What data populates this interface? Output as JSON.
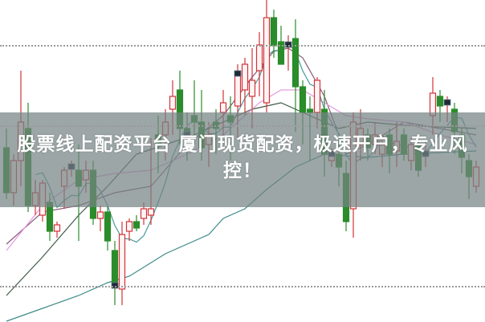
{
  "caption": "股票线上配资平台 厦门现货配资，极速开户，专业风控！",
  "colors": {
    "up": "#d0343a",
    "down": "#2a8c2a",
    "marker": "#1d2a38",
    "banner": "#768484"
  },
  "chart_data": {
    "type": "candlestick",
    "title": "",
    "xlabel": "",
    "ylabel": "",
    "ylim": [
      0,
      100
    ],
    "grid": "horizontal dotted",
    "candles": [
      {
        "o": 54,
        "h": 60,
        "l": 38,
        "c": 40
      },
      {
        "o": 40,
        "h": 52,
        "l": 36,
        "c": 50
      },
      {
        "o": 50,
        "h": 78,
        "l": 42,
        "c": 62
      },
      {
        "o": 60,
        "h": 68,
        "l": 34,
        "c": 36
      },
      {
        "o": 36,
        "h": 44,
        "l": 33,
        "c": 40
      },
      {
        "o": 33,
        "h": 44,
        "l": 31,
        "c": 43
      },
      {
        "o": 37,
        "h": 40,
        "l": 25,
        "c": 28
      },
      {
        "o": 28,
        "h": 31,
        "l": 26,
        "c": 30
      },
      {
        "o": 42,
        "h": 48,
        "l": 35,
        "c": 47
      },
      {
        "o": 48,
        "h": 50,
        "l": 45,
        "c": 48,
        "marker": true
      },
      {
        "o": 47,
        "h": 55,
        "l": 25,
        "c": 42
      },
      {
        "o": 44,
        "h": 50,
        "l": 40,
        "c": 47
      },
      {
        "o": 47,
        "h": 50,
        "l": 30,
        "c": 32
      },
      {
        "o": 32,
        "h": 36,
        "l": 28,
        "c": 34
      },
      {
        "o": 34,
        "h": 36,
        "l": 22,
        "c": 25
      },
      {
        "o": 22,
        "h": 25,
        "l": 5,
        "c": 11,
        "marker": true
      },
      {
        "o": 10,
        "h": 31,
        "l": 5,
        "c": 27
      },
      {
        "o": 28,
        "h": 32,
        "l": 25,
        "c": 31
      },
      {
        "o": 31,
        "h": 33,
        "l": 28,
        "c": 29
      },
      {
        "o": 32,
        "h": 37,
        "l": 30,
        "c": 35
      },
      {
        "o": 33,
        "h": 57,
        "l": 30,
        "c": 35
      },
      {
        "o": 58,
        "h": 64,
        "l": 46,
        "c": 55
      },
      {
        "o": 58,
        "h": 66,
        "l": 50,
        "c": 62
      },
      {
        "o": 66,
        "h": 75,
        "l": 58,
        "c": 70
      },
      {
        "o": 72,
        "h": 78,
        "l": 55,
        "c": 60
      },
      {
        "o": 60,
        "h": 65,
        "l": 50,
        "c": 58,
        "marker": true
      },
      {
        "o": 64,
        "h": 75,
        "l": 55,
        "c": 62
      },
      {
        "o": 62,
        "h": 72,
        "l": 50,
        "c": 54
      },
      {
        "o": 55,
        "h": 62,
        "l": 48,
        "c": 58
      },
      {
        "o": 62,
        "h": 66,
        "l": 52,
        "c": 60
      },
      {
        "o": 65,
        "h": 72,
        "l": 58,
        "c": 68
      },
      {
        "o": 64,
        "h": 70,
        "l": 50,
        "c": 62
      },
      {
        "o": 67,
        "h": 80,
        "l": 57,
        "c": 77,
        "marker": true
      },
      {
        "o": 72,
        "h": 82,
        "l": 64,
        "c": 80
      },
      {
        "o": 70,
        "h": 85,
        "l": 60,
        "c": 75
      },
      {
        "o": 78,
        "h": 90,
        "l": 70,
        "c": 86
      },
      {
        "o": 68,
        "h": 100,
        "l": 65,
        "c": 94.5
      },
      {
        "o": 94.5,
        "h": 97,
        "l": 82,
        "c": 85.8
      },
      {
        "o": 87,
        "h": 92,
        "l": 80,
        "c": 80
      },
      {
        "o": 86,
        "h": 89,
        "l": 78,
        "c": 86,
        "marker": true
      },
      {
        "o": 88,
        "h": 94,
        "l": 59,
        "c": 73
      },
      {
        "o": 73,
        "h": 75,
        "l": 55,
        "c": 65
      },
      {
        "o": 66,
        "h": 70,
        "l": 50,
        "c": 65
      },
      {
        "o": 65,
        "h": 76,
        "l": 60,
        "c": 75
      },
      {
        "o": 66,
        "h": 72,
        "l": 45,
        "c": 52
      },
      {
        "o": 50,
        "h": 54,
        "l": 48,
        "c": 52,
        "marker": true
      },
      {
        "o": 52,
        "h": 58,
        "l": 42,
        "c": 48
      },
      {
        "o": 46,
        "h": 50,
        "l": 28,
        "c": 31
      },
      {
        "o": 35,
        "h": 65,
        "l": 26,
        "c": 62
      },
      {
        "o": 55,
        "h": 66,
        "l": 50,
        "c": 60
      },
      {
        "o": 58,
        "h": 60,
        "l": 50,
        "c": 54
      },
      {
        "o": 55,
        "h": 62,
        "l": 52,
        "c": 58
      },
      {
        "o": 52,
        "h": 58,
        "l": 48,
        "c": 55
      },
      {
        "o": 58,
        "h": 60,
        "l": 46,
        "c": 52
      },
      {
        "o": 53,
        "h": 62,
        "l": 48,
        "c": 56
      },
      {
        "o": 58,
        "h": 60,
        "l": 50,
        "c": 52
      },
      {
        "o": 50,
        "h": 57,
        "l": 47,
        "c": 55
      },
      {
        "o": 55,
        "h": 57,
        "l": 45,
        "c": 47
      },
      {
        "o": 52,
        "h": 56,
        "l": 48,
        "c": 52,
        "marker": true
      },
      {
        "o": 64,
        "h": 76,
        "l": 58,
        "c": 71
      },
      {
        "o": 70,
        "h": 72,
        "l": 62,
        "c": 67
      },
      {
        "o": 68,
        "h": 70,
        "l": 62,
        "c": 68,
        "marker": true
      },
      {
        "o": 66,
        "h": 68,
        "l": 52,
        "c": 59
      },
      {
        "o": 58,
        "h": 60,
        "l": 46,
        "c": 51
      },
      {
        "o": 50,
        "h": 52,
        "l": 38,
        "c": 45
      },
      {
        "o": 42,
        "h": 50,
        "l": 40,
        "c": 48
      }
    ],
    "moving_averages": [
      {
        "color": "#3d8a8a",
        "points": [
          [
            0,
            0
          ],
          [
            5,
            4
          ],
          [
            10,
            8
          ],
          [
            14,
            12
          ],
          [
            17,
            14
          ],
          [
            22,
            21
          ],
          [
            28,
            27
          ],
          [
            30,
            32
          ],
          [
            33,
            35
          ],
          [
            36,
            41
          ],
          [
            40,
            48
          ],
          [
            44,
            52
          ],
          [
            50,
            51
          ],
          [
            55,
            52
          ],
          [
            65,
            53
          ]
        ]
      },
      {
        "color": "#3f5a45",
        "points": [
          [
            0,
            8
          ],
          [
            5,
            20
          ],
          [
            10,
            33
          ],
          [
            14,
            42
          ],
          [
            18,
            52
          ],
          [
            22,
            55
          ],
          [
            26,
            58
          ],
          [
            30,
            62
          ],
          [
            34,
            66
          ],
          [
            38,
            68
          ],
          [
            42,
            64
          ],
          [
            46,
            60
          ],
          [
            50,
            62
          ],
          [
            55,
            61
          ],
          [
            65,
            60
          ]
        ]
      },
      {
        "color": "#8a5a7a",
        "points": [
          [
            0,
            24
          ],
          [
            5,
            34
          ],
          [
            10,
            36
          ],
          [
            15,
            40
          ],
          [
            20,
            42
          ],
          [
            25,
            55
          ],
          [
            30,
            64
          ],
          [
            34,
            76
          ],
          [
            37,
            84
          ],
          [
            39,
            85
          ],
          [
            41,
            82
          ],
          [
            44,
            70
          ],
          [
            47,
            52
          ],
          [
            50,
            55
          ],
          [
            55,
            62
          ],
          [
            60,
            60
          ],
          [
            65,
            58
          ]
        ]
      },
      {
        "color": "#e39ae0",
        "points": [
          [
            0,
            22
          ],
          [
            5,
            36
          ],
          [
            10,
            44
          ],
          [
            15,
            46
          ],
          [
            20,
            47
          ],
          [
            25,
            52
          ],
          [
            30,
            58
          ],
          [
            35,
            68
          ],
          [
            38,
            72
          ],
          [
            41,
            72
          ],
          [
            44,
            68
          ],
          [
            47,
            64
          ],
          [
            50,
            63
          ],
          [
            55,
            62
          ],
          [
            60,
            58
          ],
          [
            65,
            55
          ]
        ]
      }
    ]
  }
}
